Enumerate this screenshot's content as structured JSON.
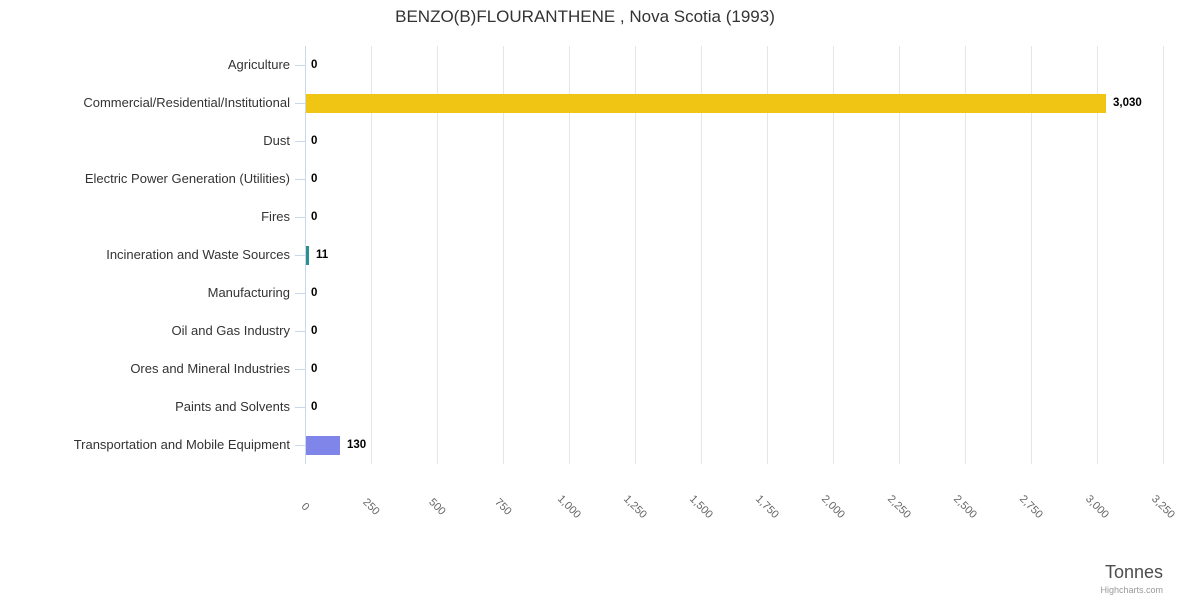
{
  "credits": "Highcharts.com",
  "chart_data": {
    "type": "bar",
    "orientation": "horizontal",
    "title": "BENZO(B)FLOURANTHENE , Nova Scotia (1993)",
    "xlabel": "Tonnes",
    "ylabel": "",
    "xlim": [
      0,
      3250
    ],
    "grid": true,
    "legend": false,
    "categories": [
      "Agriculture",
      "Commercial/Residential/Institutional",
      "Dust",
      "Electric Power Generation (Utilities)",
      "Fires",
      "Incineration and Waste Sources",
      "Manufacturing",
      "Oil and Gas Industry",
      "Ores and Mineral Industries",
      "Paints and Solvents",
      "Transportation and Mobile Equipment"
    ],
    "values": [
      0,
      3030,
      0,
      0,
      0,
      11,
      0,
      0,
      0,
      0,
      130
    ],
    "value_labels": [
      "0",
      "3,030",
      "0",
      "0",
      "0",
      "11",
      "0",
      "0",
      "0",
      "0",
      "130"
    ],
    "bar_colors": [
      null,
      "#f0c514",
      null,
      null,
      null,
      "#2b908f",
      null,
      null,
      null,
      null,
      "#8085e9"
    ],
    "x_tick_labels": [
      "0",
      "250",
      "500",
      "750",
      "1,000",
      "1,250",
      "1,500",
      "1,750",
      "2,000",
      "2,250",
      "2,500",
      "2,750",
      "3,000",
      "3,250"
    ],
    "x_tick_values": [
      0,
      250,
      500,
      750,
      1000,
      1250,
      1500,
      1750,
      2000,
      2250,
      2500,
      2750,
      3000,
      3250
    ]
  }
}
